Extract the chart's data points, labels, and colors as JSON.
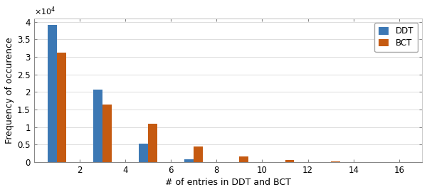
{
  "xlabel": "# of entries in DDT and BCT",
  "ylabel": "Frequency of occurence",
  "ddt_x": [
    1,
    3,
    5,
    7,
    9,
    11,
    13,
    15
  ],
  "ddt_y": [
    39000,
    20600,
    5200,
    800,
    0,
    0,
    0,
    0
  ],
  "bct_x": [
    1,
    3,
    5,
    7,
    9,
    11,
    13,
    15
  ],
  "bct_y": [
    31200,
    16500,
    11000,
    4400,
    1700,
    700,
    300,
    50
  ],
  "bar_width": 0.4,
  "ddt_color": "#3c78b4",
  "bct_color": "#c55a11",
  "xlim": [
    0,
    17
  ],
  "ylim": [
    0,
    41000
  ],
  "xticks": [
    2,
    4,
    6,
    8,
    10,
    12,
    14,
    16
  ],
  "ytick_vals": [
    0,
    0.5,
    1.0,
    1.5,
    2.0,
    2.5,
    3.0,
    3.5,
    4.0
  ],
  "ytick_scale": 10000,
  "legend_labels": [
    "DDT",
    "BCT"
  ],
  "background_color": "#ffffff"
}
